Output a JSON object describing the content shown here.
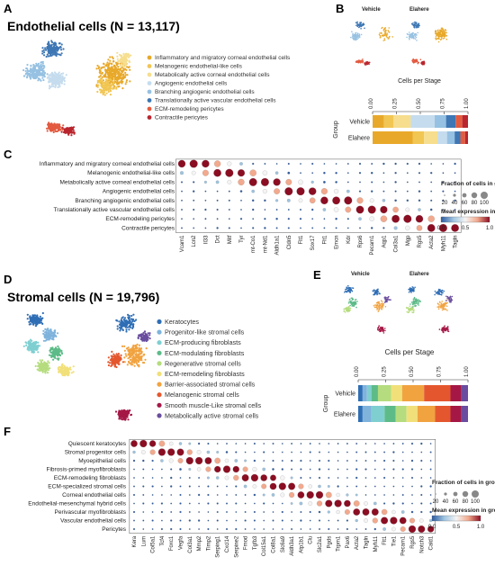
{
  "colors": {
    "scale": [
      "#2c5aa0",
      "#9ec4e0",
      "#f4f4f4",
      "#f2a98d",
      "#8b0d22"
    ]
  },
  "panelA": {
    "letter": "A",
    "title": "Endothelial cells (N = 13,117)",
    "legend": [
      {
        "label": "Inflammatory and migratory corneal endothelial cells",
        "color": "#e8a92a"
      },
      {
        "label": "Melanogenic endothelial-like cells",
        "color": "#f1c653"
      },
      {
        "label": "Metabolically active corneal endothelial cells",
        "color": "#f6de8e"
      },
      {
        "label": "Angiogenic endothelial cells",
        "color": "#c5dcee"
      },
      {
        "label": "Branching angiogenic endothelial cells",
        "color": "#96c1e2"
      },
      {
        "label": "Translationally active vascular endothelial cells",
        "color": "#3e77b4"
      },
      {
        "label": "ECM-remodeling pericytes",
        "color": "#e35b40"
      },
      {
        "label": "Contractile pericytes",
        "color": "#b9262e"
      }
    ]
  },
  "panelB": {
    "letter": "B",
    "umap_labels": [
      "Vehicle",
      "Elahere"
    ],
    "axis_title": "Cells per Stage",
    "ticks": [
      "0.00",
      "0.25",
      "0.50",
      "0.75",
      "1.00"
    ],
    "group_label": "Group",
    "groups": [
      "Vehicle",
      "Elahere"
    ],
    "colors": [
      "#e8a92a",
      "#f1c653",
      "#f6de8e",
      "#c5dcee",
      "#96c1e2",
      "#3e77b4",
      "#e35b40",
      "#b9262e"
    ],
    "fractions": [
      [
        0.12,
        0.1,
        0.18,
        0.25,
        0.12,
        0.1,
        0.07,
        0.06
      ],
      [
        0.42,
        0.12,
        0.14,
        0.1,
        0.08,
        0.06,
        0.05,
        0.03
      ]
    ]
  },
  "panelC": {
    "letter": "C",
    "rows": [
      "Inflammatory and migratory corneal endothelial cells",
      "Melanogenic endothelial-like cells",
      "Metabolically active corneal endothelial cells",
      "Angiogenic endothelial cells",
      "Branching angiogenic endothelial cells",
      "Translationally active vascular endothelial cells",
      "ECM-remodeling pericytes",
      "Contractile pericytes"
    ],
    "genes": [
      "Vcam1",
      "Lcn2",
      "Il33",
      "Dct",
      "Mitf",
      "Tyr",
      "mt-Co1",
      "mt-Nd1",
      "Aldh1a1",
      "Cldn5",
      "Flt1",
      "Sox17",
      "Flt1",
      "Emcn",
      "Kdr",
      "Rps6",
      "Pecam1",
      "Aqp1",
      "Col3a1",
      "Mgp",
      "Rgs5",
      "Acta2",
      "Myh11",
      "Tagln"
    ],
    "legend_size_title": "Fraction of cells in group (%)",
    "size_ticks": [
      "20",
      "40",
      "60",
      "80",
      "100"
    ],
    "legend_color_title": "Mean expression in group",
    "color_ticks": [
      "0.0",
      "0.5",
      "1.0"
    ]
  },
  "panelD": {
    "letter": "D",
    "title": "Stromal cells (N = 19,796)",
    "legend": [
      {
        "label": "Keratocytes",
        "color": "#2f6eb5"
      },
      {
        "label": "Progenitor-like stromal cells",
        "color": "#7fb3dc"
      },
      {
        "label": "ECM-producing fibroblasts",
        "color": "#7fcfd1"
      },
      {
        "label": "ECM-modulating fibroblasts",
        "color": "#5dbb88"
      },
      {
        "label": "Regenerative stromal cells",
        "color": "#b5dc7e"
      },
      {
        "label": "ECM-remodeling fibroblasts",
        "color": "#f1e07a"
      },
      {
        "label": "Barrier-associated stromal cells",
        "color": "#f1a340"
      },
      {
        "label": "Melanogenic stromal cells",
        "color": "#e4572e"
      },
      {
        "label": "Smooth muscle-Like stromal cells",
        "color": "#a51846"
      },
      {
        "label": "Metabolically active stromal cells",
        "color": "#6a4d9e"
      }
    ]
  },
  "panelE": {
    "letter": "E",
    "umap_labels": [
      "Vehicle",
      "Elahere"
    ],
    "axis_title": "Cells per Stage",
    "ticks": [
      "0.00",
      "0.25",
      "0.50",
      "0.75",
      "1.00"
    ],
    "group_label": "Group",
    "groups": [
      "Vehicle",
      "Elahere"
    ],
    "colors": [
      "#2f6eb5",
      "#7fb3dc",
      "#7fcfd1",
      "#5dbb88",
      "#b5dc7e",
      "#f1e07a",
      "#f1a340",
      "#e4572e",
      "#a51846",
      "#6a4d9e"
    ],
    "fractions": [
      [
        0.04,
        0.04,
        0.04,
        0.06,
        0.12,
        0.1,
        0.2,
        0.24,
        0.1,
        0.06
      ],
      [
        0.04,
        0.08,
        0.12,
        0.1,
        0.1,
        0.1,
        0.16,
        0.14,
        0.1,
        0.06
      ]
    ]
  },
  "panelF": {
    "letter": "F",
    "rows": [
      "Quiescent keratocytes",
      "Stromal progenitor cells",
      "Myoepithelial cells",
      "Fibrosis-primed myofibroblasts",
      "ECM-remodeling fibroblasts",
      "ECM-specialized stromal cells",
      "Corneal endothelial cells",
      "Endothelial-mesenchymal hybrid cells",
      "Perivascular myofibroblasts",
      "Vascular endothelial cells",
      "Pericytes"
    ],
    "genes": [
      "Kera",
      "Lum",
      "Col5a1",
      "Tcf4",
      "Foxc1",
      "Vegfa",
      "Col3a1",
      "Mmp2",
      "Timp2",
      "Serping1",
      "Cxcl14",
      "Serpine2",
      "Fmod",
      "Tgfb3",
      "Col15a1",
      "Col8a1",
      "Slc6a9",
      "Aldh3a1",
      "Atp1b1",
      "Clu",
      "Slc2a1",
      "Pgds",
      "Trpm1",
      "Pax6",
      "Acta2",
      "Tagln",
      "Myh11",
      "Flt1",
      "Tie1",
      "Pecam1",
      "Rgs5",
      "Notch3",
      "Cald1"
    ],
    "legend_size_title": "Fraction of cells in group (%)",
    "size_ticks": [
      "20",
      "40",
      "60",
      "80",
      "100"
    ],
    "legend_color_title": "Mean expression in group",
    "color_ticks": [
      "0.0",
      "0.5",
      "1.0"
    ]
  }
}
